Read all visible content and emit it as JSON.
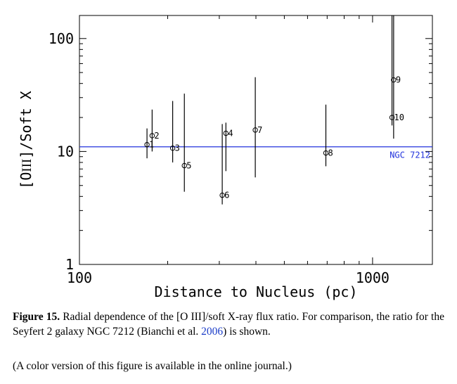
{
  "chart_data": {
    "type": "scatter",
    "xscale": "log",
    "yscale": "log",
    "xlim": [
      100,
      1600
    ],
    "ylim": [
      1,
      160
    ],
    "xticks": [
      {
        "value": 100,
        "label": "100"
      },
      {
        "value": 1000,
        "label": "1000"
      }
    ],
    "yticks": [
      {
        "value": 1,
        "label": "1"
      },
      {
        "value": 10,
        "label": "10"
      },
      {
        "value": 100,
        "label": "100"
      }
    ],
    "xlabel": "Distance to Nucleus (pc)",
    "ylabel_parts": {
      "pre": "[O",
      "roman": "III",
      "post": "]/Soft X"
    },
    "grid": false,
    "points": [
      {
        "label": "1",
        "x": 170,
        "y": 11.5,
        "ylow": 8.7,
        "yhigh": 16
      },
      {
        "label": "2",
        "x": 177,
        "y": 13.8,
        "ylow": 10,
        "yhigh": 23.5
      },
      {
        "label": "3",
        "x": 208,
        "y": 10.7,
        "ylow": 8,
        "yhigh": 28
      },
      {
        "label": "5",
        "x": 228,
        "y": 7.5,
        "ylow": 4.4,
        "yhigh": 32.5
      },
      {
        "label": "6",
        "x": 307,
        "y": 4.1,
        "ylow": 3.4,
        "yhigh": 17.5
      },
      {
        "label": "4",
        "x": 316,
        "y": 14.5,
        "ylow": 6.7,
        "yhigh": 18
      },
      {
        "label": "7",
        "x": 398,
        "y": 15.5,
        "ylow": 5.9,
        "yhigh": 45.5
      },
      {
        "label": "8",
        "x": 693,
        "y": 9.7,
        "ylow": 7.4,
        "yhigh": 26
      },
      {
        "label": "10",
        "x": 1165,
        "y": 20,
        "ylow": 17,
        "yhigh": 160
      },
      {
        "label": "9",
        "x": 1180,
        "y": 43,
        "ylow": 13,
        "yhigh": 160
      }
    ],
    "reference_line": {
      "y": 11,
      "label": "NGC 7212",
      "color": "#2233dd"
    }
  },
  "caption": {
    "label": "Figure 15.",
    "text_part1": " Radial dependence of the [O ",
    "roman": "III",
    "text_part2": "]/soft X-ray flux ratio. For comparison, the ratio for the Seyfert 2 galaxy NGC 7212 (Bianchi et al. ",
    "citation_year": "2006",
    "text_part3": ") is shown."
  },
  "note": "(A color version of this figure is available in the online journal.)"
}
